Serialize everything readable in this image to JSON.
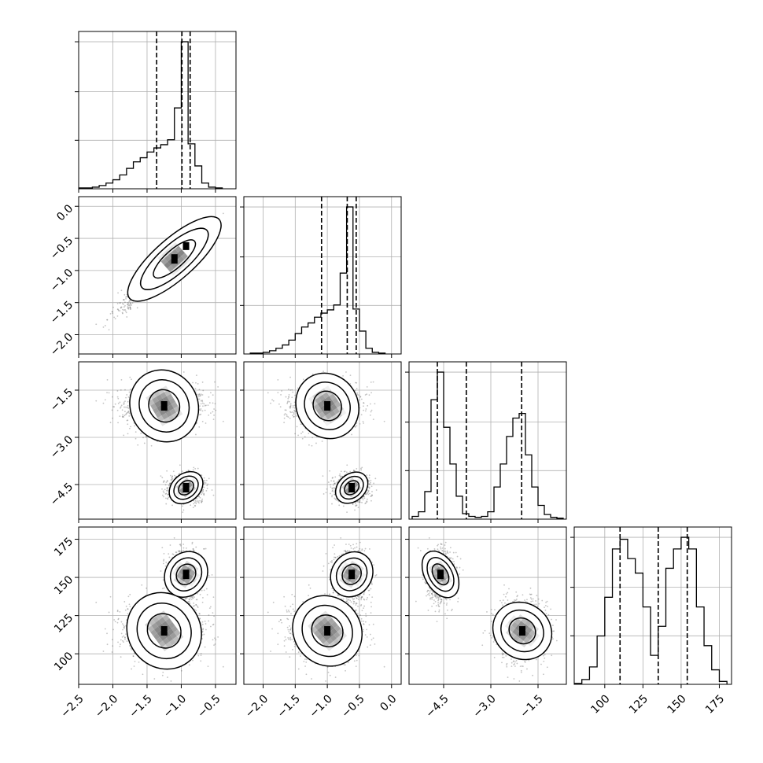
{
  "chart_data": {
    "type": "corner",
    "grid": true,
    "quantiles_marked": 3,
    "panels": [
      {
        "kind": "hist",
        "var": 0,
        "bins": [
          -2.5,
          -2.4,
          -2.3,
          -2.2,
          -2.1,
          -2.0,
          -1.9,
          -1.8,
          -1.7,
          -1.6,
          -1.5,
          -1.4,
          -1.3,
          -1.2,
          -1.1,
          -1.0,
          -0.9,
          -0.8,
          -0.7,
          -0.6,
          -0.5,
          -0.4
        ],
        "counts": [
          1,
          1,
          2,
          4,
          7,
          11,
          17,
          25,
          33,
          38,
          45,
          50,
          54,
          60,
          99,
          180,
          55,
          28,
          7,
          2,
          1
        ],
        "quantile_lines": [
          -1.36,
          -0.99,
          -0.87
        ]
      },
      {
        "kind": "hist",
        "var": 1,
        "bins": [
          -2.2,
          -2.1,
          -2.0,
          -1.9,
          -1.8,
          -1.7,
          -1.6,
          -1.5,
          -1.4,
          -1.3,
          -1.2,
          -1.1,
          -1.0,
          -0.9,
          -0.8,
          -0.7,
          -0.6,
          -0.5,
          -0.4,
          -0.3,
          -0.2,
          -0.1
        ],
        "counts": [
          1,
          1,
          2,
          4,
          7,
          11,
          17,
          25,
          33,
          38,
          45,
          50,
          54,
          60,
          99,
          180,
          55,
          28,
          7,
          2,
          1
        ],
        "quantile_lines": [
          -1.09,
          -0.69,
          -0.55
        ]
      },
      {
        "kind": "hist",
        "var": 2,
        "bins": [
          -5.5,
          -5.3,
          -5.1,
          -4.9,
          -4.7,
          -4.5,
          -4.3,
          -4.1,
          -3.9,
          -3.7,
          -3.5,
          -3.3,
          -3.1,
          -2.9,
          -2.7,
          -2.5,
          -2.3,
          -2.1,
          -1.9,
          -1.7,
          -1.5,
          -1.3,
          -1.1,
          -0.9,
          -0.7
        ],
        "counts": [
          3,
          8,
          30,
          130,
          160,
          100,
          60,
          25,
          6,
          3,
          2,
          3,
          8,
          35,
          60,
          90,
          110,
          115,
          70,
          35,
          15,
          5,
          2,
          1
        ],
        "quantile_lines": [
          -4.7,
          -3.78,
          -2.02
        ]
      },
      {
        "kind": "hist",
        "var": 3,
        "bins": [
          80,
          85,
          90,
          95,
          100,
          105,
          110,
          115,
          120,
          125,
          130,
          135,
          140,
          145,
          150,
          155,
          160,
          165,
          170,
          175,
          180
        ],
        "counts": [
          1,
          5,
          18,
          50,
          90,
          140,
          150,
          130,
          115,
          80,
          30,
          60,
          120,
          140,
          152,
          140,
          80,
          40,
          15,
          3
        ],
        "quantile_lines": [
          110,
          135,
          154
        ]
      },
      {
        "kind": "contour",
        "x": 0,
        "y": 1
      },
      {
        "kind": "contour",
        "x": 0,
        "y": 2
      },
      {
        "kind": "contour",
        "x": 1,
        "y": 2
      },
      {
        "kind": "contour",
        "x": 0,
        "y": 3
      },
      {
        "kind": "contour",
        "x": 1,
        "y": 3
      },
      {
        "kind": "contour",
        "x": 2,
        "y": 3
      }
    ],
    "axes": [
      {
        "range": [
          -2.5,
          -0.2
        ],
        "ticks": [
          -2.5,
          -2.0,
          -1.5,
          -1.0,
          -0.5
        ],
        "tick_labels": [
          "−2.5",
          "−2.0",
          "−1.5",
          "−1.0",
          "−0.5"
        ]
      },
      {
        "range": [
          -2.3,
          0.15
        ],
        "ticks": [
          -2.0,
          -1.5,
          -1.0,
          -0.5,
          0.0
        ],
        "tick_labels": [
          "−2.0",
          "−1.5",
          "−1.0",
          "−0.5",
          "0.0"
        ]
      },
      {
        "range": [
          -5.6,
          -0.6
        ],
        "ticks": [
          -4.5,
          -3.0,
          -1.5
        ],
        "tick_labels": [
          "−4.5",
          "−3.0",
          "−1.5"
        ]
      },
      {
        "range": [
          80,
          183
        ],
        "ticks": [
          100,
          125,
          150,
          175
        ],
        "tick_labels": [
          "100",
          "125",
          "150",
          "175"
        ]
      }
    ]
  }
}
